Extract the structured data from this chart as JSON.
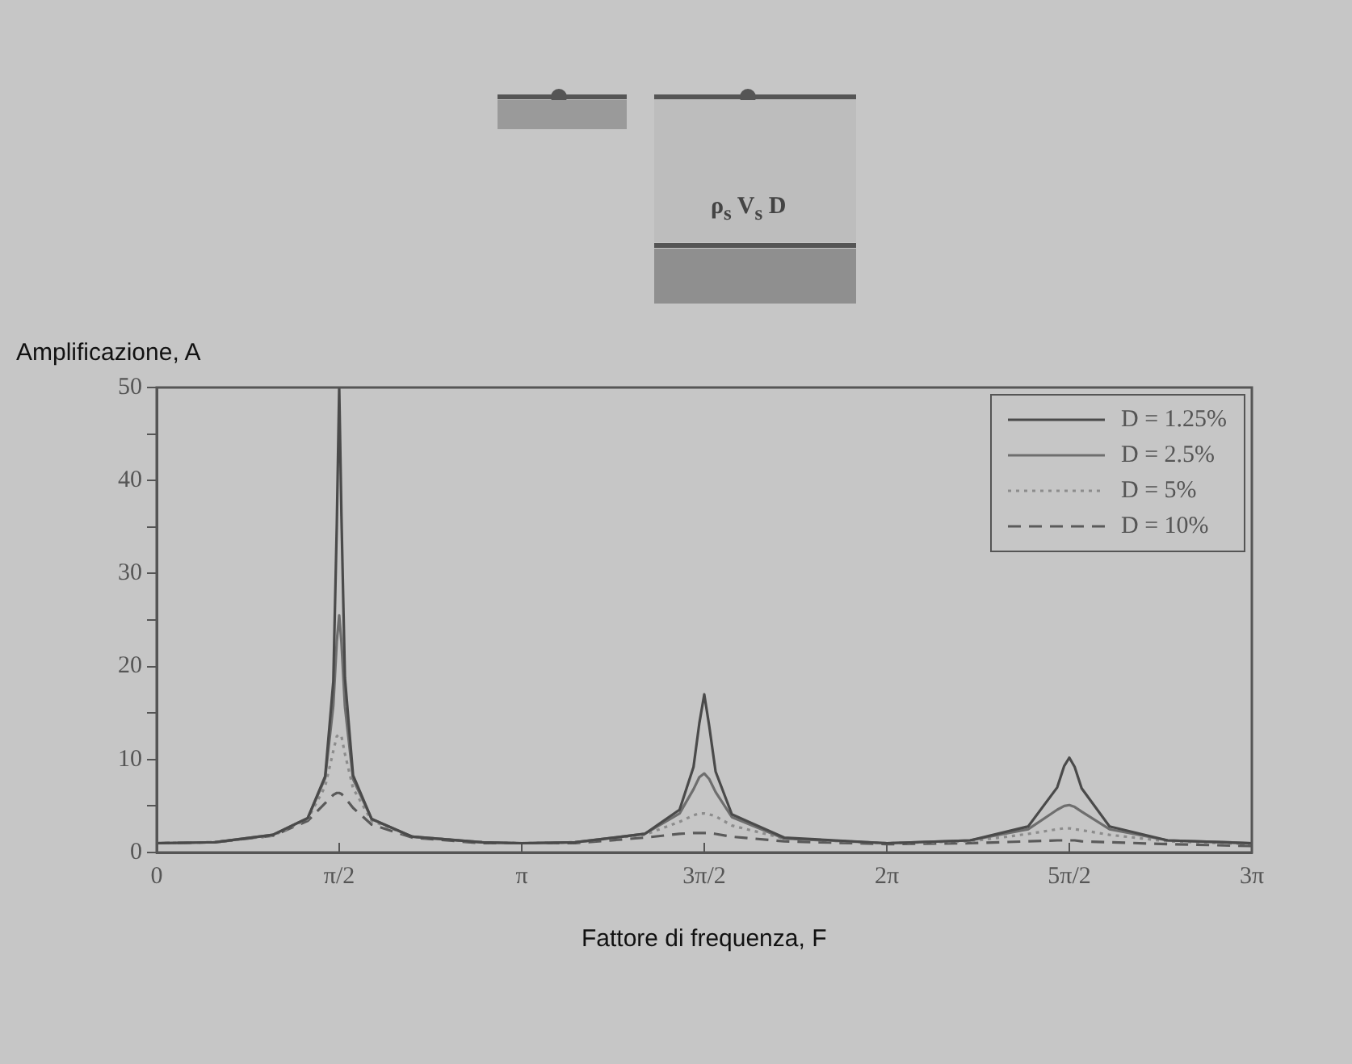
{
  "chart_data": {
    "type": "line",
    "xlabel": "Fattore di frequenza, F",
    "ylabel": "Amplificazione, A",
    "annotations": [
      "ρ$_{s}$ V$_{s}$ D"
    ],
    "x": [
      0,
      0.5,
      1.0,
      1.3,
      1.45,
      1.52,
      1.55,
      1.5708,
      1.59,
      1.62,
      1.69,
      1.85,
      2.2,
      2.8,
      3.1416,
      3.6,
      4.2,
      4.5,
      4.62,
      4.67,
      4.7124,
      4.755,
      4.81,
      4.95,
      5.4,
      6.2832,
      7.0,
      7.5,
      7.75,
      7.81,
      7.854,
      7.9,
      7.96,
      8.2,
      8.7,
      9.4248
    ],
    "series": [
      {
        "name": "D = 1.25%",
        "color": "#4a4a4a",
        "line_style": "solid",
        "values": [
          1,
          1.1,
          1.9,
          3.7,
          8.2,
          18.4,
          35.2,
          50,
          36.2,
          18.8,
          8.3,
          3.6,
          1.7,
          1.1,
          1,
          1.1,
          2,
          4.6,
          9.2,
          13.9,
          17,
          13.6,
          8.7,
          4.1,
          1.6,
          1,
          1.3,
          2.8,
          7,
          9.3,
          10.2,
          9.2,
          6.9,
          2.8,
          1.3,
          1
        ]
      },
      {
        "name": "D = 2.5%",
        "color": "#6e6e6e",
        "line_style": "solid",
        "values": [
          1,
          1.1,
          1.9,
          3.7,
          8,
          15.8,
          22.7,
          25.5,
          22.6,
          15.7,
          7.9,
          3.6,
          1.7,
          1.1,
          1,
          1.1,
          2,
          4.2,
          6.8,
          8.1,
          8.5,
          7.9,
          6.5,
          3.8,
          1.5,
          1,
          1.3,
          2.5,
          4.6,
          5,
          5.1,
          4.9,
          4.4,
          2.5,
          1.3,
          1
        ]
      },
      {
        "name": "D = 5%",
        "color": "#8c8c8c",
        "line_style": "dotted",
        "values": [
          1,
          1.1,
          1.8,
          3.6,
          7.1,
          10.9,
          12.5,
          12.7,
          12.5,
          10.6,
          6.9,
          3.4,
          1.7,
          1.1,
          1,
          1.1,
          1.9,
          3.3,
          4,
          4.2,
          4.2,
          4.1,
          3.9,
          2.9,
          1.5,
          1,
          1.2,
          2,
          2.5,
          2.6,
          2.6,
          2.5,
          2.4,
          1.9,
          1.2,
          0.9
        ]
      },
      {
        "name": "D = 10%",
        "color": "#5a5a5a",
        "line_style": "dashed",
        "values": [
          1,
          1.1,
          1.8,
          3.4,
          5.3,
          6.2,
          6.4,
          6.4,
          6.3,
          5.9,
          4.8,
          3,
          1.6,
          1,
          1,
          1,
          1.6,
          2,
          2.1,
          2.1,
          2.1,
          2.1,
          2,
          1.7,
          1.2,
          0.9,
          1,
          1.2,
          1.3,
          1.3,
          1.3,
          1.3,
          1.2,
          1.1,
          0.9,
          0.7
        ]
      }
    ],
    "xlim": [
      0,
      9.4248
    ],
    "xticks": [
      0,
      {
        "value": 1.5708,
        "label": "π/2"
      },
      {
        "value": 3.1416,
        "label": "π"
      },
      {
        "value": 4.7124,
        "label": "3π/2"
      },
      {
        "value": 6.2832,
        "label": "2π"
      },
      {
        "value": 7.854,
        "label": "5π/2"
      },
      {
        "value": 9.4248,
        "label": "3π"
      }
    ],
    "ylim": [
      0,
      50
    ],
    "yticks": [
      0,
      {
        "value": 5,
        "label": null
      },
      10,
      {
        "value": 15,
        "label": null
      },
      20,
      {
        "value": 25,
        "label": null
      },
      30,
      {
        "value": 35,
        "label": null
      },
      40,
      {
        "value": 45,
        "label": null
      },
      50
    ],
    "grid": false,
    "legend": "top right",
    "marker": "none"
  }
}
